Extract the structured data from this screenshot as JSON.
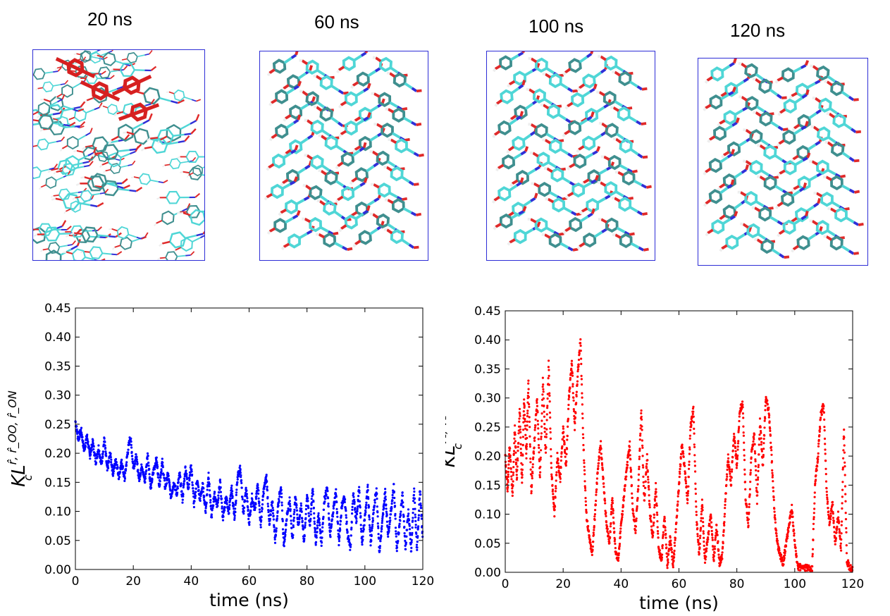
{
  "snapshots": [
    {
      "label": "20 ns"
    },
    {
      "label": "60 ns"
    },
    {
      "label": "100 ns"
    },
    {
      "label": "120 ns"
    }
  ],
  "colors": {
    "carbon": "#4fd6d6",
    "carbon_dark": "#3f8f8f",
    "oxygen": "#e02a2a",
    "nitrogen": "#2f2fd8",
    "hydrogen": "#eeeeee",
    "highlight": "#d62020",
    "box": "#2d2dd6",
    "series_left": "#0000ff",
    "series_right": "#ff0000"
  },
  "chart_data": [
    {
      "type": "scatter",
      "title": "",
      "xlabel": "time (ns)",
      "ylabel": "KL_c^{r̂, r̂_OO, r̂_ON}",
      "ylabel_main": "KL",
      "ylabel_sub": "c",
      "ylabel_sup": "r̂, r̂_OO, r̂_ON",
      "xlim": [
        0,
        120
      ],
      "ylim": [
        0,
        0.45
      ],
      "xticks": [
        0,
        20,
        40,
        60,
        80,
        100,
        120
      ],
      "yticks": [
        0.0,
        0.05,
        0.1,
        0.15,
        0.2,
        0.25,
        0.3,
        0.35,
        0.4,
        0.45
      ],
      "ytick_labels": [
        "0.00",
        "0.05",
        "0.10",
        "0.15",
        "0.20",
        "0.25",
        "0.30",
        "0.35",
        "0.40",
        "0.45"
      ],
      "grid": false,
      "series": [
        {
          "color": "#0000ff",
          "trace": [
            [
              0,
              0.255
            ],
            [
              1,
              0.225
            ],
            [
              2,
              0.24
            ],
            [
              3,
              0.205
            ],
            [
              4,
              0.23
            ],
            [
              5,
              0.195
            ],
            [
              6,
              0.22
            ],
            [
              7,
              0.185
            ],
            [
              8,
              0.21
            ],
            [
              9,
              0.18
            ],
            [
              10,
              0.225
            ],
            [
              11,
              0.17
            ],
            [
              12,
              0.2
            ],
            [
              13,
              0.165
            ],
            [
              14,
              0.19
            ],
            [
              15,
              0.16
            ],
            [
              16,
              0.185
            ],
            [
              17,
              0.155
            ],
            [
              18,
              0.2
            ],
            [
              19,
              0.23
            ],
            [
              20,
              0.175
            ],
            [
              21,
              0.195
            ],
            [
              22,
              0.155
            ],
            [
              23,
              0.18
            ],
            [
              24,
              0.15
            ],
            [
              25,
              0.2
            ],
            [
              26,
              0.14
            ],
            [
              27,
              0.17
            ],
            [
              28,
              0.19
            ],
            [
              29,
              0.145
            ],
            [
              30,
              0.185
            ],
            [
              31,
              0.14
            ],
            [
              32,
              0.165
            ],
            [
              33,
              0.125
            ],
            [
              34,
              0.15
            ],
            [
              35,
              0.13
            ],
            [
              36,
              0.165
            ],
            [
              37,
              0.12
            ],
            [
              38,
              0.175
            ],
            [
              39,
              0.14
            ],
            [
              40,
              0.18
            ],
            [
              41,
              0.11
            ],
            [
              42,
              0.155
            ],
            [
              43,
              0.12
            ],
            [
              44,
              0.145
            ],
            [
              45,
              0.1
            ],
            [
              46,
              0.165
            ],
            [
              47,
              0.09
            ],
            [
              48,
              0.13
            ],
            [
              49,
              0.11
            ],
            [
              50,
              0.15
            ],
            [
              51,
              0.085
            ],
            [
              52,
              0.125
            ],
            [
              53,
              0.1
            ],
            [
              54,
              0.14
            ],
            [
              55,
              0.085
            ],
            [
              56,
              0.16
            ],
            [
              57,
              0.175
            ],
            [
              58,
              0.095
            ],
            [
              59,
              0.14
            ],
            [
              60,
              0.08
            ],
            [
              61,
              0.125
            ],
            [
              62,
              0.1
            ],
            [
              63,
              0.15
            ],
            [
              64,
              0.075
            ],
            [
              65,
              0.135
            ],
            [
              66,
              0.16
            ],
            [
              67,
              0.075
            ],
            [
              68,
              0.12
            ],
            [
              69,
              0.05
            ],
            [
              70,
              0.11
            ],
            [
              71,
              0.145
            ],
            [
              72,
              0.04
            ],
            [
              73,
              0.09
            ],
            [
              74,
              0.12
            ],
            [
              75,
              0.05
            ],
            [
              76,
              0.13
            ],
            [
              77,
              0.075
            ],
            [
              78,
              0.11
            ],
            [
              79,
              0.045
            ],
            [
              80,
              0.13
            ],
            [
              81,
              0.075
            ],
            [
              82,
              0.14
            ],
            [
              83,
              0.045
            ],
            [
              84,
              0.095
            ],
            [
              85,
              0.045
            ],
            [
              86,
              0.12
            ],
            [
              87,
              0.14
            ],
            [
              88,
              0.055
            ],
            [
              89,
              0.1
            ],
            [
              90,
              0.135
            ],
            [
              91,
              0.045
            ],
            [
              92,
              0.11
            ],
            [
              93,
              0.125
            ],
            [
              94,
              0.06
            ],
            [
              95,
              0.035
            ],
            [
              96,
              0.135
            ],
            [
              97,
              0.08
            ],
            [
              98,
              0.14
            ],
            [
              99,
              0.045
            ],
            [
              100,
              0.09
            ],
            [
              101,
              0.14
            ],
            [
              102,
              0.045
            ],
            [
              103,
              0.1
            ],
            [
              104,
              0.14
            ],
            [
              105,
              0.03
            ],
            [
              106,
              0.08
            ],
            [
              107,
              0.135
            ],
            [
              108,
              0.06
            ],
            [
              109,
              0.1
            ],
            [
              110,
              0.145
            ],
            [
              111,
              0.035
            ],
            [
              112,
              0.08
            ],
            [
              113,
              0.13
            ],
            [
              114,
              0.035
            ],
            [
              115,
              0.1
            ],
            [
              116,
              0.03
            ],
            [
              117,
              0.14
            ],
            [
              118,
              0.03
            ],
            [
              119,
              0.14
            ],
            [
              120,
              0.05
            ]
          ]
        }
      ]
    },
    {
      "type": "scatter",
      "title": "",
      "xlabel": "time (ns)",
      "ylabel": "KL_c^{v_1, v_2}",
      "ylabel_main": "KL",
      "ylabel_sub": "c",
      "ylabel_sup": "v₁, v₂",
      "xlim": [
        0,
        120
      ],
      "ylim": [
        0,
        0.45
      ],
      "xticks": [
        0,
        20,
        40,
        60,
        80,
        100,
        120
      ],
      "yticks": [
        0.0,
        0.05,
        0.1,
        0.15,
        0.2,
        0.25,
        0.3,
        0.35,
        0.4,
        0.45
      ],
      "ytick_labels": [
        "0.00",
        "0.05",
        "0.10",
        "0.15",
        "0.20",
        "0.25",
        "0.30",
        "0.35",
        "0.40",
        "0.45"
      ],
      "grid": false,
      "series": [
        {
          "color": "#ff0000",
          "trace": [
            [
              0,
              0.2
            ],
            [
              0.8,
              0.14
            ],
            [
              1.5,
              0.22
            ],
            [
              2.5,
              0.13
            ],
            [
              3.3,
              0.25
            ],
            [
              4,
              0.16
            ],
            [
              5,
              0.28
            ],
            [
              5.8,
              0.15
            ],
            [
              6.5,
              0.3
            ],
            [
              7.3,
              0.2
            ],
            [
              8,
              0.33
            ],
            [
              9,
              0.14
            ],
            [
              10,
              0.22
            ],
            [
              11,
              0.3
            ],
            [
              12,
              0.16
            ],
            [
              13,
              0.33
            ],
            [
              14,
              0.2
            ],
            [
              15,
              0.36
            ],
            [
              16,
              0.17
            ],
            [
              17,
              0.1
            ],
            [
              18,
              0.2
            ],
            [
              19,
              0.16
            ],
            [
              20,
              0.25
            ],
            [
              21,
              0.18
            ],
            [
              22,
              0.3
            ],
            [
              23,
              0.36
            ],
            [
              24,
              0.25
            ],
            [
              25,
              0.34
            ],
            [
              26,
              0.4
            ],
            [
              27,
              0.22
            ],
            [
              28,
              0.1
            ],
            [
              29,
              0.06
            ],
            [
              30,
              0.03
            ],
            [
              31,
              0.1
            ],
            [
              32,
              0.18
            ],
            [
              33,
              0.22
            ],
            [
              34,
              0.15
            ],
            [
              35,
              0.08
            ],
            [
              36,
              0.05
            ],
            [
              37,
              0.13
            ],
            [
              38,
              0.04
            ],
            [
              39,
              0.02
            ],
            [
              40,
              0.08
            ],
            [
              41,
              0.13
            ],
            [
              42,
              0.18
            ],
            [
              43,
              0.22
            ],
            [
              44,
              0.11
            ],
            [
              45,
              0.07
            ],
            [
              46,
              0.15
            ],
            [
              47,
              0.28
            ],
            [
              48,
              0.12
            ],
            [
              49,
              0.2
            ],
            [
              50,
              0.1
            ],
            [
              51,
              0.06
            ],
            [
              52,
              0.15
            ],
            [
              53,
              0.04
            ],
            [
              54,
              0.02
            ],
            [
              55,
              0.1
            ],
            [
              56,
              0.01
            ],
            [
              57,
              0.06
            ],
            [
              58,
              0.01
            ],
            [
              59,
              0.08
            ],
            [
              60,
              0.15
            ],
            [
              61,
              0.22
            ],
            [
              62,
              0.18
            ],
            [
              63,
              0.12
            ],
            [
              64,
              0.25
            ],
            [
              65,
              0.28
            ],
            [
              66,
              0.1
            ],
            [
              67,
              0.03
            ],
            [
              68,
              0.12
            ],
            [
              69,
              0.02
            ],
            [
              70,
              0.06
            ],
            [
              71,
              0.1
            ],
            [
              72,
              0.02
            ],
            [
              73,
              0.08
            ],
            [
              74,
              0.015
            ],
            [
              75,
              0.03
            ],
            [
              76,
              0.12
            ],
            [
              77,
              0.2
            ],
            [
              78,
              0.15
            ],
            [
              79,
              0.24
            ],
            [
              80,
              0.18
            ],
            [
              81,
              0.28
            ],
            [
              82,
              0.29
            ],
            [
              83,
              0.13
            ],
            [
              84,
              0.08
            ],
            [
              85,
              0.2
            ],
            [
              86,
              0.24
            ],
            [
              87,
              0.12
            ],
            [
              88,
              0.26
            ],
            [
              89,
              0.18
            ],
            [
              90,
              0.3
            ],
            [
              91,
              0.28
            ],
            [
              92,
              0.2
            ],
            [
              93,
              0.1
            ],
            [
              94,
              0.05
            ],
            [
              95,
              0.03
            ],
            [
              96,
              0.015
            ],
            [
              97,
              0.05
            ],
            [
              98,
              0.08
            ],
            [
              99,
              0.11
            ],
            [
              100,
              0.05
            ],
            [
              101,
              0.01
            ],
            [
              102,
              0.008
            ],
            [
              104,
              0.007
            ],
            [
              106,
              0.007
            ],
            [
              107,
              0.15
            ],
            [
              108,
              0.2
            ],
            [
              109,
              0.27
            ],
            [
              110,
              0.29
            ],
            [
              111,
              0.14
            ],
            [
              112,
              0.08
            ],
            [
              113,
              0.12
            ],
            [
              114,
              0.05
            ],
            [
              115,
              0.1
            ],
            [
              116,
              0.04
            ],
            [
              117,
              0.25
            ],
            [
              118,
              0.02
            ],
            [
              119,
              0.008
            ],
            [
              120,
              0.004
            ]
          ]
        }
      ]
    }
  ]
}
